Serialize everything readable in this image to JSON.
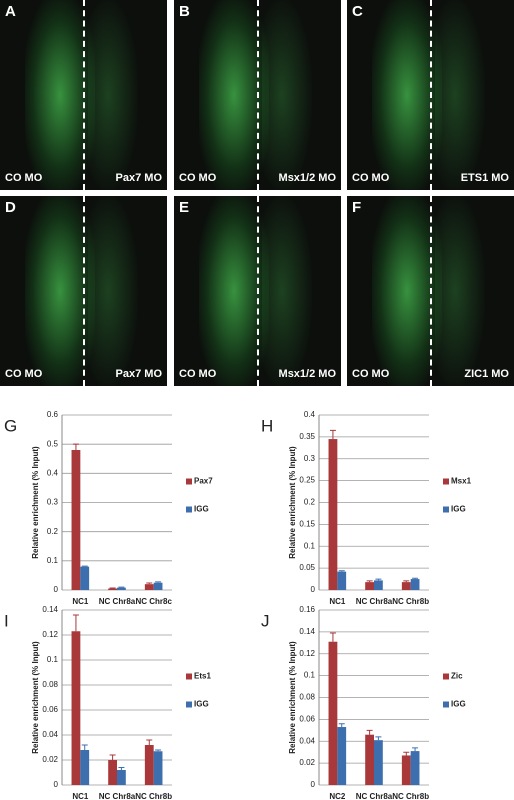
{
  "panels": [
    {
      "letter": "A",
      "left": "CO MO",
      "right": "Pax7 MO"
    },
    {
      "letter": "B",
      "left": "CO MO",
      "right": "Msx1/2 MO"
    },
    {
      "letter": "C",
      "left": "CO MO",
      "right": "ETS1 MO"
    },
    {
      "letter": "D",
      "left": "CO MO",
      "right": "Pax7 MO"
    },
    {
      "letter": "E",
      "left": "CO MO",
      "right": "Msx1/2 MO"
    },
    {
      "letter": "F",
      "left": "CO MO",
      "right": "ZIC1 MO"
    }
  ],
  "chart_data": [
    {
      "type": "bar",
      "letter": "G",
      "ylabel": "Relative enrichment (% Input)",
      "categories": [
        "NC1",
        "NC Chr8a",
        "NC Chr8c"
      ],
      "series": [
        {
          "name": "Pax7",
          "color": "#a8383a",
          "values": [
            0.48,
            0.005,
            0.02
          ],
          "errors": [
            0.02,
            0.002,
            0.004
          ]
        },
        {
          "name": "IGG",
          "color": "#3d6fae",
          "values": [
            0.08,
            0.008,
            0.025
          ],
          "errors": [
            0.002,
            0.002,
            0.003
          ]
        }
      ],
      "ylim": [
        0,
        0.6
      ],
      "yticks": [
        0,
        0.1,
        0.2,
        0.3,
        0.4,
        0.5,
        0.6
      ],
      "grid": true
    },
    {
      "type": "bar",
      "letter": "H",
      "ylabel": "Relative enrichment (% Input)",
      "categories": [
        "NC1",
        "NC Chr8a",
        "NC Chr8b"
      ],
      "series": [
        {
          "name": "Msx1",
          "color": "#a8383a",
          "values": [
            0.345,
            0.018,
            0.018
          ],
          "errors": [
            0.02,
            0.003,
            0.003
          ]
        },
        {
          "name": "IGG",
          "color": "#3d6fae",
          "values": [
            0.042,
            0.022,
            0.025
          ],
          "errors": [
            0.002,
            0.003,
            0.002
          ]
        }
      ],
      "ylim": [
        0,
        0.4
      ],
      "yticks": [
        0,
        0.05,
        0.1,
        0.15,
        0.2,
        0.25,
        0.3,
        0.35,
        0.4
      ],
      "grid": true
    },
    {
      "type": "bar",
      "letter": "I",
      "ylabel": "Relative enrichment (% Input)",
      "categories": [
        "NC1",
        "NC Chr8a",
        "NC Chr8b"
      ],
      "series": [
        {
          "name": "Ets1",
          "color": "#a8383a",
          "values": [
            0.123,
            0.02,
            0.032
          ],
          "errors": [
            0.013,
            0.004,
            0.004
          ]
        },
        {
          "name": "IGG",
          "color": "#3d6fae",
          "values": [
            0.028,
            0.012,
            0.027
          ],
          "errors": [
            0.004,
            0.002,
            0.001
          ]
        }
      ],
      "ylim": [
        0,
        0.14
      ],
      "yticks": [
        0,
        0.02,
        0.04,
        0.06,
        0.08,
        0.1,
        0.12,
        0.14
      ],
      "grid": true
    },
    {
      "type": "bar",
      "letter": "J",
      "ylabel": "Relative enrichment (% Input)",
      "categories": [
        "NC2",
        "NC Chr8a",
        "NC Chr8b"
      ],
      "series": [
        {
          "name": "Zic",
          "color": "#a8383a",
          "values": [
            0.131,
            0.046,
            0.027
          ],
          "errors": [
            0.008,
            0.004,
            0.003
          ]
        },
        {
          "name": "IGG",
          "color": "#3d6fae",
          "values": [
            0.053,
            0.041,
            0.031
          ],
          "errors": [
            0.003,
            0.003,
            0.003
          ]
        }
      ],
      "ylim": [
        0,
        0.16
      ],
      "yticks": [
        0,
        0.02,
        0.04,
        0.06,
        0.08,
        0.1,
        0.12,
        0.14,
        0.16
      ],
      "grid": true
    }
  ]
}
